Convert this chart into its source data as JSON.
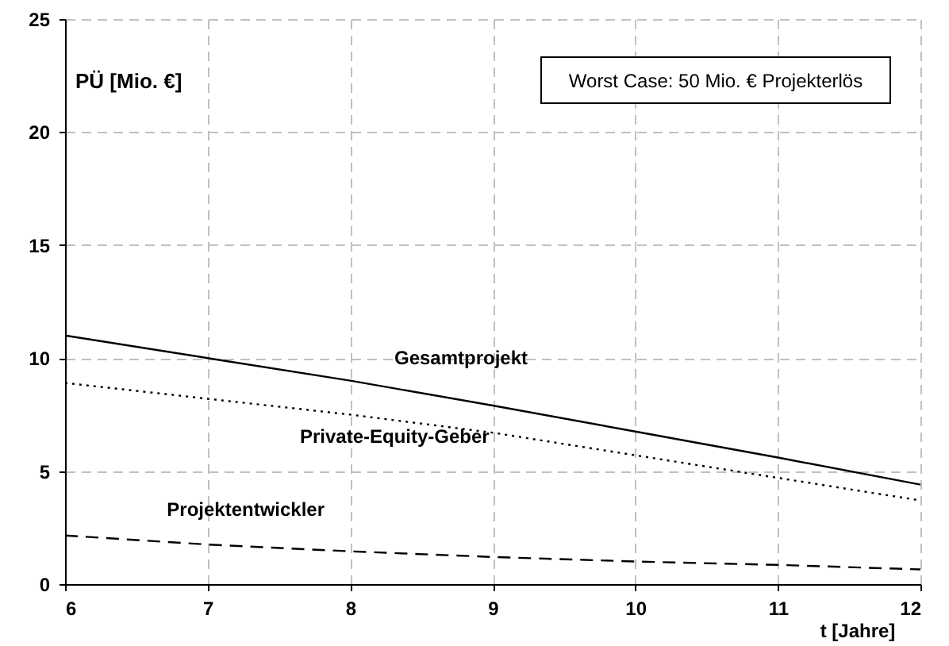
{
  "chart_data": {
    "type": "line",
    "xlabel": "t [Jahre]",
    "ylabel": "PÜ [Mio. €]",
    "annotations": [
      "Worst Case: 50 Mio. € Projekterlös"
    ],
    "x": [
      6,
      7,
      8,
      9,
      10,
      11,
      12
    ],
    "series": [
      {
        "name": "Gesamtprojekt",
        "color": "#000000",
        "line_style": "solid",
        "values": [
          11,
          10,
          9,
          7.9,
          6.75,
          5.6,
          4.4
        ]
      },
      {
        "name": "Private-Equity-Geber",
        "color": "#000000",
        "line_style": "dotted",
        "values": [
          8.9,
          8.2,
          7.5,
          6.7,
          5.7,
          4.7,
          3.7
        ]
      },
      {
        "name": "Projektentwickler",
        "color": "#000000",
        "line_style": "dashed",
        "values": [
          2.15,
          1.75,
          1.45,
          1.2,
          1.0,
          0.85,
          0.65
        ]
      }
    ],
    "xlim": [
      6,
      12
    ],
    "xticks": [
      6,
      7,
      8,
      9,
      10,
      11,
      12
    ],
    "ylim": [
      0,
      25
    ],
    "yticks": [
      0,
      5,
      10,
      15,
      20,
      25
    ],
    "grid": true,
    "marker": "none"
  }
}
